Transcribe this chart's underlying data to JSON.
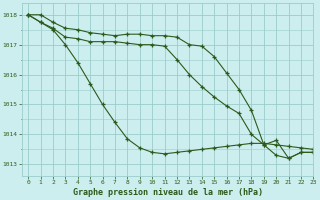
{
  "title": "Graphe pression niveau de la mer (hPa)",
  "bg_color": "#cceeee",
  "grid_color": "#99cccc",
  "line_color": "#2d5a1b",
  "xlim": [
    -0.5,
    23
  ],
  "ylim": [
    1012.6,
    1018.4
  ],
  "yticks": [
    1013,
    1014,
    1015,
    1016,
    1017,
    1018
  ],
  "xticks": [
    0,
    1,
    2,
    3,
    4,
    5,
    6,
    7,
    8,
    9,
    10,
    11,
    12,
    13,
    14,
    15,
    16,
    17,
    18,
    19,
    20,
    21,
    22,
    23
  ],
  "series1": [
    1018.0,
    1018.0,
    1017.75,
    1017.55,
    1017.5,
    1017.4,
    1017.35,
    1017.3,
    1017.35,
    1017.35,
    1017.3,
    1017.3,
    1017.25,
    1017.0,
    1016.95,
    1016.6,
    1016.05,
    1015.5,
    1014.8,
    1013.65,
    1013.3,
    1013.2,
    1013.4,
    1013.4
  ],
  "series2": [
    1018.0,
    1017.75,
    1017.55,
    1017.25,
    1017.2,
    1017.1,
    1017.1,
    1017.1,
    1017.05,
    1017.0,
    1017.0,
    1016.95,
    1016.5,
    1016.0,
    1015.6,
    1015.25,
    1014.95,
    1014.7,
    1014.0,
    1013.65,
    1013.8,
    1013.2,
    1013.4,
    1013.4
  ],
  "series3": [
    1018.0,
    1017.75,
    1017.5,
    1017.0,
    1016.4,
    1015.7,
    1015.0,
    1014.4,
    1013.85,
    1013.55,
    1013.4,
    1013.35,
    1013.4,
    1013.45,
    1013.5,
    1013.55,
    1013.6,
    1013.65,
    1013.7,
    1013.7,
    1013.65,
    1013.6,
    1013.55,
    1013.5
  ]
}
